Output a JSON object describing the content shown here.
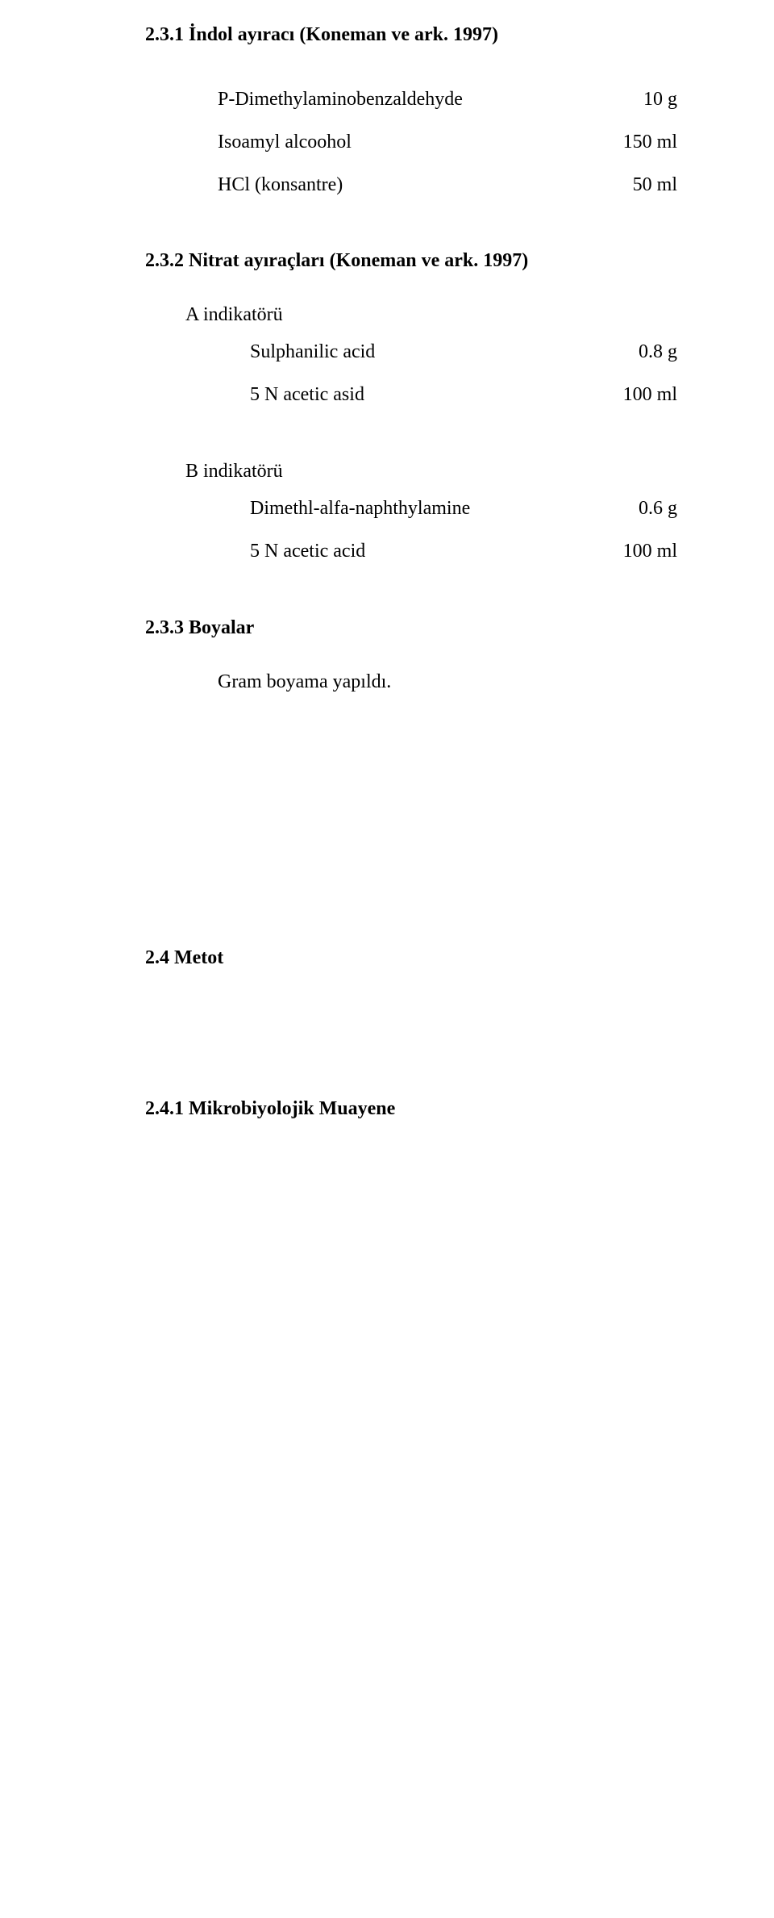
{
  "font": {
    "family": "Times New Roman",
    "body_size_pt": 12,
    "heading_weight": "bold"
  },
  "colors": {
    "text": "#000000",
    "background": "#ffffff"
  },
  "sec1": {
    "heading": "2.3.1 İndol ayıracı (Koneman  ve ark. 1997)",
    "rows": [
      {
        "label": "P-Dimethylaminobenzaldehyde",
        "value": "10 g"
      },
      {
        "label": "Isoamyl alcoohol",
        "value": "150 ml"
      },
      {
        "label": "HCl (konsantre)",
        "value": "50 ml"
      }
    ]
  },
  "sec2": {
    "heading": "2.3.2 Nitrat ayıraçları (Koneman  ve ark. 1997)",
    "groupA": {
      "title": "A indikatörü",
      "rows": [
        {
          "label": "Sulphanilic acid",
          "value": "0.8 g"
        },
        {
          "label": "5 N acetic asid",
          "value": "100 ml"
        }
      ]
    },
    "groupB": {
      "title": "B indikatörü",
      "rows": [
        {
          "label": "Dimethl-alfa-naphthylamine",
          "value": "0.6 g"
        },
        {
          "label": "5 N acetic acid",
          "value": "100 ml"
        }
      ]
    }
  },
  "sec3": {
    "heading": "2.3.3 Boyalar",
    "line": "Gram boyama yapıldı."
  },
  "sec4": {
    "heading": "2.4 Metot"
  },
  "sec41": {
    "heading": "2.4.1 Mikrobiyolojik Muayene"
  }
}
